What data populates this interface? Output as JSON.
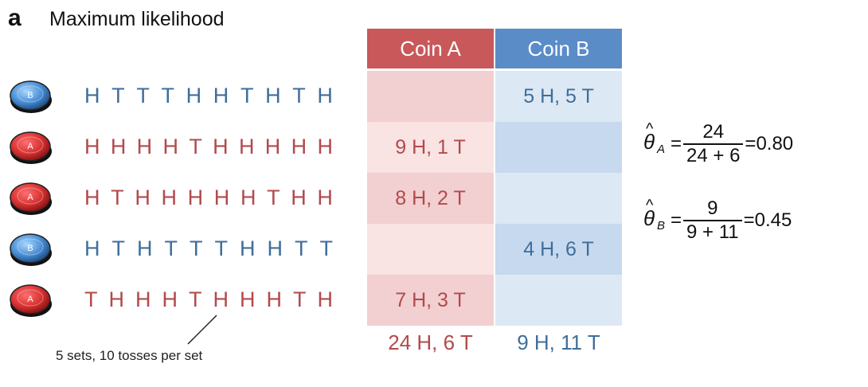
{
  "panel_letter": "a",
  "title": "Maximum likelihood",
  "colors": {
    "coin_a": "#b24a4c",
    "coin_b": "#3f6e9c",
    "header_a": "#c9585a",
    "header_b": "#5a8cc8"
  },
  "table": {
    "header_a": "Coin A",
    "header_b": "Coin B",
    "totals": {
      "a": "24 H, 6 T",
      "b": "9 H, 11 T"
    }
  },
  "rows": [
    {
      "coin": "B",
      "tosses": [
        "H",
        "T",
        "T",
        "T",
        "H",
        "H",
        "T",
        "H",
        "T",
        "H"
      ],
      "count_a": "",
      "count_b": "5 H, 5 T"
    },
    {
      "coin": "A",
      "tosses": [
        "H",
        "H",
        "H",
        "H",
        "T",
        "H",
        "H",
        "H",
        "H",
        "H"
      ],
      "count_a": "9 H, 1 T",
      "count_b": ""
    },
    {
      "coin": "A",
      "tosses": [
        "H",
        "T",
        "H",
        "H",
        "H",
        "H",
        "H",
        "T",
        "H",
        "H"
      ],
      "count_a": "8 H, 2 T",
      "count_b": ""
    },
    {
      "coin": "B",
      "tosses": [
        "H",
        "T",
        "H",
        "T",
        "T",
        "T",
        "H",
        "H",
        "T",
        "T"
      ],
      "count_a": "",
      "count_b": "4 H, 6 T"
    },
    {
      "coin": "A",
      "tosses": [
        "T",
        "H",
        "H",
        "H",
        "T",
        "H",
        "H",
        "H",
        "T",
        "H"
      ],
      "count_a": "7 H, 3 T",
      "count_b": ""
    }
  ],
  "annotation": "5 sets, 10 tosses per set",
  "equations": [
    {
      "symbol": "θ",
      "hat": "^",
      "subscript": "A",
      "equals": "=",
      "numerator": "24",
      "denominator": "24 + 6",
      "result": "=0.80"
    },
    {
      "symbol": "θ",
      "hat": "^",
      "subscript": "B",
      "equals": "=",
      "numerator": "9",
      "denominator": "9 + 11",
      "result": "=0.45"
    }
  ]
}
